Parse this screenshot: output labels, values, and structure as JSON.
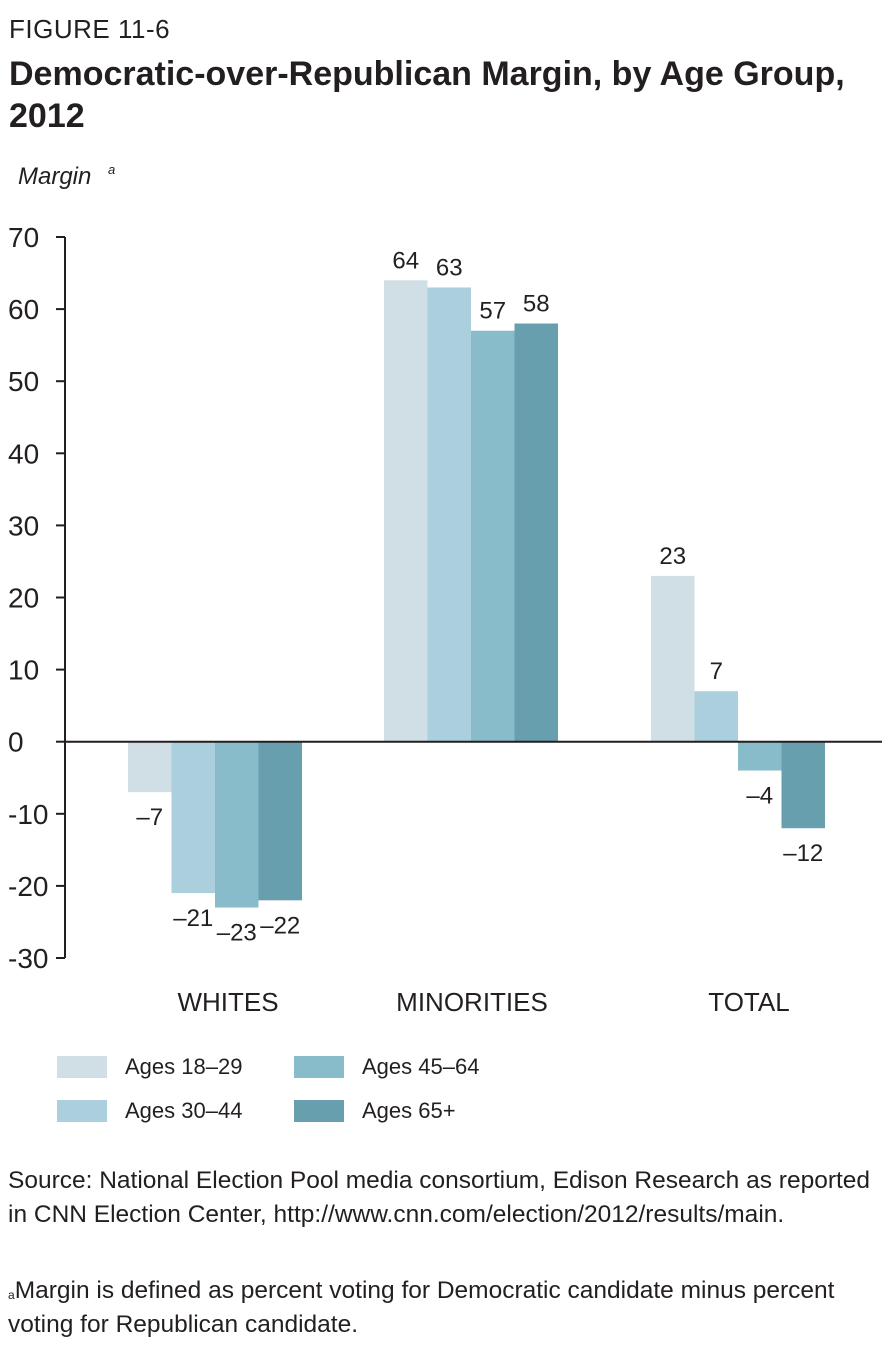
{
  "figure": {
    "label": "FIGURE 11-6",
    "title": "Democratic-over-Republican Margin, by Age Group, 2012"
  },
  "chart_data": {
    "type": "bar",
    "title": "Democratic-over-Republican Margin, by Age Group, 2012",
    "ylabel": "Margin",
    "ylabel_sup": "a",
    "xlabel": "",
    "ylim": [
      -30,
      70
    ],
    "yticks": [
      "70",
      "60",
      "50",
      "40",
      "30",
      "20",
      "10",
      "0",
      "-10",
      "-20",
      "-30"
    ],
    "categories": [
      "WHITES",
      "MINORITIES",
      "TOTAL"
    ],
    "series": [
      {
        "name": "Ages 18–29",
        "color": "#d0dfe5",
        "values": [
          -7,
          64,
          23
        ],
        "labels": [
          "–7",
          "64",
          "23"
        ]
      },
      {
        "name": "Ages 30–44",
        "color": "#abcfdc",
        "values": [
          -21,
          63,
          7
        ],
        "labels": [
          "–21",
          "63",
          "7"
        ]
      },
      {
        "name": "Ages 45–64",
        "color": "#89bcca",
        "values": [
          -23,
          57,
          -4
        ],
        "labels": [
          "–23",
          "57",
          "–4"
        ]
      },
      {
        "name": "Ages 65+",
        "color": "#689fae",
        "values": [
          -22,
          58,
          -12
        ],
        "labels": [
          "–22",
          "58",
          "–12"
        ]
      }
    ],
    "grid": false,
    "legend_position": "bottom-left"
  },
  "legend": {
    "s0": "Ages 18–29",
    "s1": "Ages 30–44",
    "s2": "Ages 45–64",
    "s3": "Ages 65+"
  },
  "source_text": "Source: National Election Pool media consortium, Edison Research as reported in CNN Election Center, http://www.cnn.com/election/2012/results/main.",
  "footnote": {
    "marker": "a",
    "text": "Margin is defined as percent voting for Democratic candidate minus percent voting for Republican candidate."
  }
}
